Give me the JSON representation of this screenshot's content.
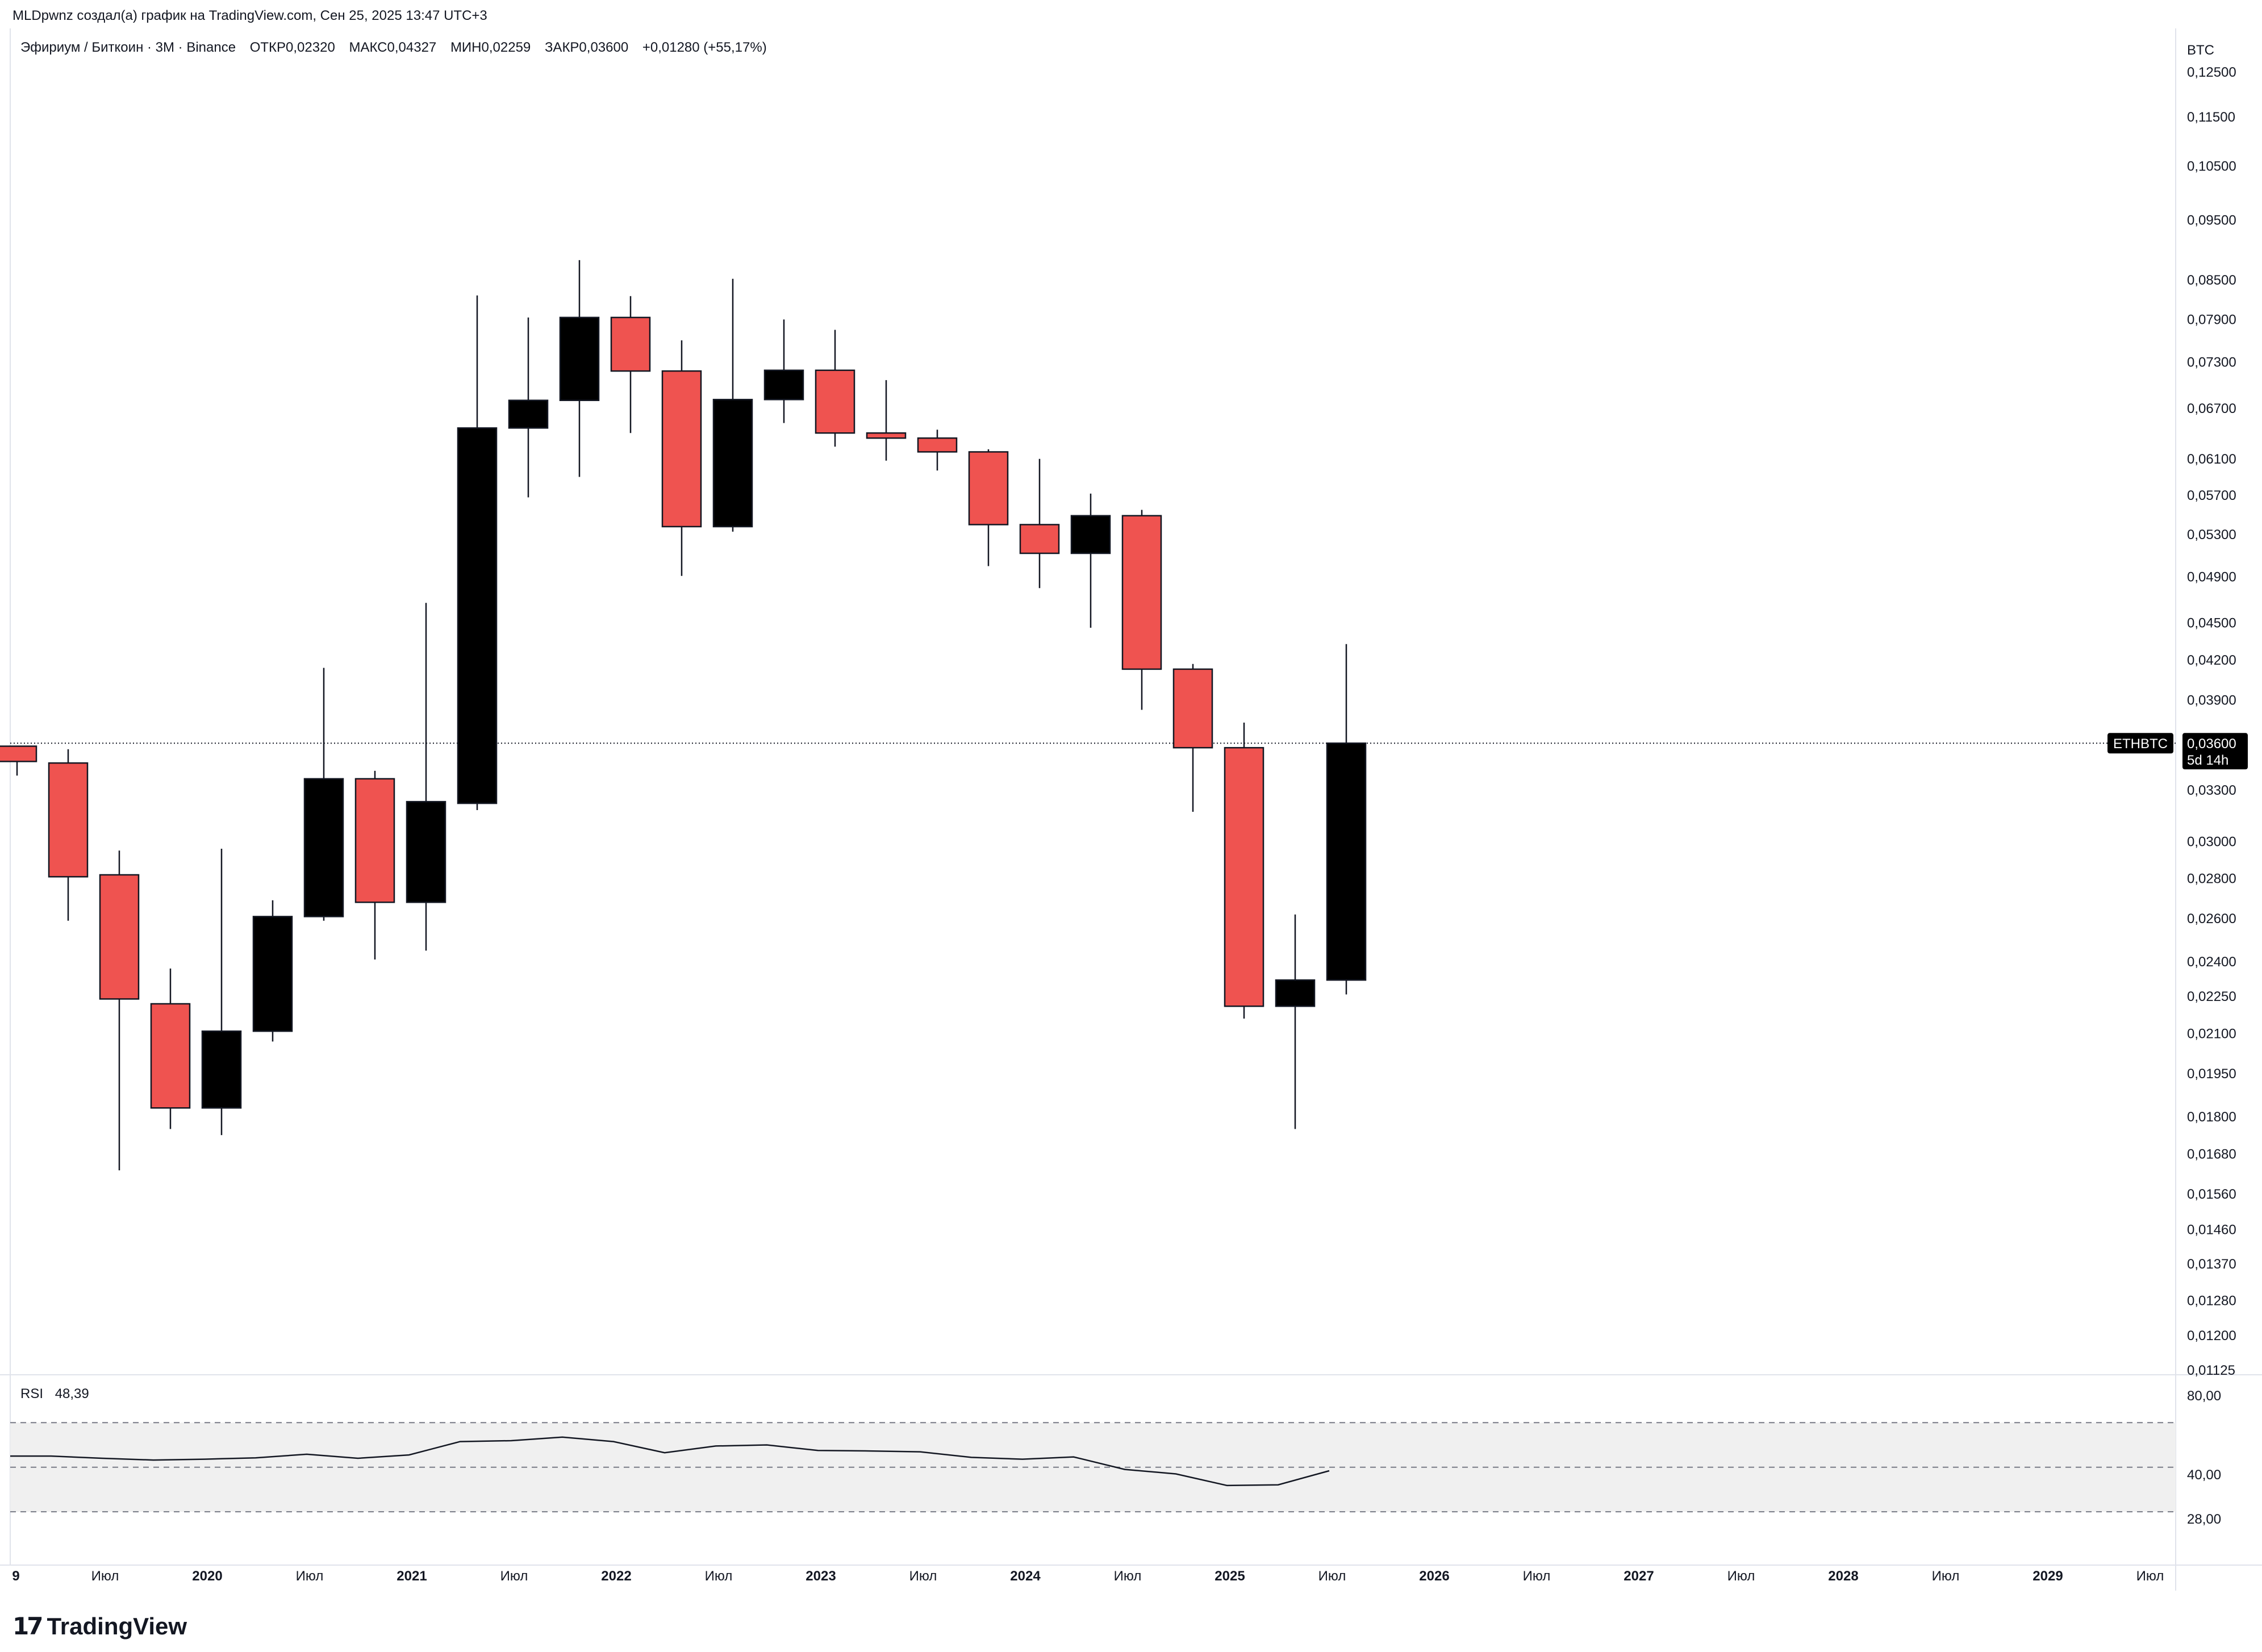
{
  "header": {
    "credit": "MLDpwnz создал(а) график на TradingView.com, Сен 25, 2025 13:47 UTC+3"
  },
  "legend": {
    "symbol": "Эфириум / Биткоин · 3М · Binance",
    "open": "ОТКР0,02320",
    "high": "МАКС0,04327",
    "low": "МИН0,02259",
    "close": "ЗАКР0,03600",
    "change": "+0,01280 (+55,17%)"
  },
  "price_axis": {
    "currency": "BTC",
    "last_label": "0,03600",
    "symbol_badge": "ETHBTC",
    "countdown": "5d 14h"
  },
  "rsi": {
    "name": "RSI",
    "value": "48,39",
    "labels": [
      "80,00",
      "40,00",
      "28,00"
    ]
  },
  "branding": {
    "logo_mark": "17",
    "logo_text": "TradingView"
  },
  "colors": {
    "up": "#000000",
    "down": "#ef5350",
    "rsi_band": "#f0f0f0",
    "badge_bg": "#000000"
  },
  "chart_data": {
    "type": "candlestick",
    "scale": "log",
    "y_ticks": [
      0.125,
      0.115,
      0.105,
      0.095,
      0.085,
      0.079,
      0.073,
      0.067,
      0.061,
      0.057,
      0.053,
      0.049,
      0.045,
      0.042,
      0.039,
      0.036,
      0.033,
      0.03,
      0.028,
      0.026,
      0.024,
      0.0225,
      0.021,
      0.0195,
      0.018,
      0.0168,
      0.0156,
      0.0146,
      0.0137,
      0.0128,
      0.012,
      0.01125
    ],
    "y_tick_labels": [
      "0,12500",
      "0,11500",
      "0,10500",
      "0,09500",
      "0,08500",
      "0,07900",
      "0,07300",
      "0,06700",
      "0,06100",
      "0,05700",
      "0,05300",
      "0,04900",
      "0,04500",
      "0,04200",
      "0,03900",
      "0,03600",
      "0,03300",
      "0,03000",
      "0,02800",
      "0,02600",
      "0,02400",
      "0,02250",
      "0,02100",
      "0,01950",
      "0,01800",
      "0,01680",
      "0,01560",
      "0,01460",
      "0,01370",
      "0,01280",
      "0,01200",
      "0,01125"
    ],
    "y_range": [
      0.01125,
      0.128
    ],
    "last_price": 0.036,
    "x_labels": [
      {
        "text": "9",
        "bold": true
      },
      {
        "text": "Июл",
        "bold": false
      },
      {
        "text": "2020",
        "bold": true
      },
      {
        "text": "Июл",
        "bold": false
      },
      {
        "text": "2021",
        "bold": true
      },
      {
        "text": "Июл",
        "bold": false
      },
      {
        "text": "2022",
        "bold": true
      },
      {
        "text": "Июл",
        "bold": false
      },
      {
        "text": "2023",
        "bold": true
      },
      {
        "text": "Июл",
        "bold": false
      },
      {
        "text": "2024",
        "bold": true
      },
      {
        "text": "Июл",
        "bold": false
      },
      {
        "text": "2025",
        "bold": true
      },
      {
        "text": "Июл",
        "bold": false
      },
      {
        "text": "2026",
        "bold": true
      },
      {
        "text": "Июл",
        "bold": false
      },
      {
        "text": "2027",
        "bold": true
      },
      {
        "text": "Июл",
        "bold": false
      },
      {
        "text": "2028",
        "bold": true
      },
      {
        "text": "Июл",
        "bold": false
      },
      {
        "text": "2029",
        "bold": true
      },
      {
        "text": "Июл",
        "bold": false
      }
    ],
    "candles": [
      {
        "period": "2018-Q4",
        "o": 0.0358,
        "h": 0.0358,
        "l": 0.0339,
        "c": 0.0348
      },
      {
        "period": "2019-Q1",
        "o": 0.0347,
        "h": 0.0356,
        "l": 0.0259,
        "c": 0.0281
      },
      {
        "period": "2019-Q2",
        "o": 0.0282,
        "h": 0.0295,
        "l": 0.0163,
        "c": 0.0224
      },
      {
        "period": "2019-Q3",
        "o": 0.0222,
        "h": 0.0237,
        "l": 0.0176,
        "c": 0.0183
      },
      {
        "period": "2019-Q4",
        "o": 0.0183,
        "h": 0.0296,
        "l": 0.0174,
        "c": 0.0211
      },
      {
        "period": "2020-Q1",
        "o": 0.0211,
        "h": 0.0269,
        "l": 0.0207,
        "c": 0.0261
      },
      {
        "period": "2020-Q2",
        "o": 0.0261,
        "h": 0.0414,
        "l": 0.0259,
        "c": 0.0337
      },
      {
        "period": "2020-Q3",
        "o": 0.0337,
        "h": 0.0342,
        "l": 0.0241,
        "c": 0.0268
      },
      {
        "period": "2020-Q4",
        "o": 0.0268,
        "h": 0.0467,
        "l": 0.0245,
        "c": 0.0323
      },
      {
        "period": "2021-Q1",
        "o": 0.0322,
        "h": 0.0826,
        "l": 0.0318,
        "c": 0.0646
      },
      {
        "period": "2021-Q2",
        "o": 0.0646,
        "h": 0.0793,
        "l": 0.0568,
        "c": 0.068
      },
      {
        "period": "2021-Q3",
        "o": 0.068,
        "h": 0.0882,
        "l": 0.059,
        "c": 0.0793
      },
      {
        "period": "2021-Q4",
        "o": 0.0793,
        "h": 0.0825,
        "l": 0.064,
        "c": 0.0718
      },
      {
        "period": "2022-Q1",
        "o": 0.0718,
        "h": 0.076,
        "l": 0.0491,
        "c": 0.0538
      },
      {
        "period": "2022-Q2",
        "o": 0.0538,
        "h": 0.0852,
        "l": 0.0533,
        "c": 0.0681
      },
      {
        "period": "2022-Q3",
        "o": 0.0681,
        "h": 0.079,
        "l": 0.0652,
        "c": 0.0719
      },
      {
        "period": "2022-Q4",
        "o": 0.0719,
        "h": 0.0775,
        "l": 0.0624,
        "c": 0.064
      },
      {
        "period": "2023-Q1",
        "o": 0.064,
        "h": 0.0706,
        "l": 0.0608,
        "c": 0.0634
      },
      {
        "period": "2023-Q2",
        "o": 0.0634,
        "h": 0.0644,
        "l": 0.0597,
        "c": 0.0618
      },
      {
        "period": "2023-Q3",
        "o": 0.0618,
        "h": 0.0621,
        "l": 0.05,
        "c": 0.054
      },
      {
        "period": "2023-Q4",
        "o": 0.054,
        "h": 0.061,
        "l": 0.048,
        "c": 0.0512
      },
      {
        "period": "2024-Q1",
        "o": 0.0512,
        "h": 0.0572,
        "l": 0.0446,
        "c": 0.0549
      },
      {
        "period": "2024-Q2",
        "o": 0.0549,
        "h": 0.0555,
        "l": 0.0383,
        "c": 0.0413
      },
      {
        "period": "2024-Q3",
        "o": 0.0413,
        "h": 0.0417,
        "l": 0.0317,
        "c": 0.0357
      },
      {
        "period": "2024-Q4",
        "o": 0.0357,
        "h": 0.0374,
        "l": 0.0216,
        "c": 0.0221
      },
      {
        "period": "2025-Q1",
        "o": 0.0221,
        "h": 0.0262,
        "l": 0.0176,
        "c": 0.0232
      },
      {
        "period": "2025-Q2",
        "o": 0.0232,
        "h": 0.04327,
        "l": 0.02259,
        "c": 0.036
      }
    ],
    "rsi_series": [
      55.0,
      54.0,
      53.2,
      53.6,
      54.2,
      55.8,
      54.0,
      55.5,
      61.5,
      61.9,
      63.5,
      61.5,
      56.5,
      59.5,
      60.0,
      57.5,
      57.3,
      56.9,
      54.4,
      53.6,
      54.6,
      49.0,
      47.0,
      41.8,
      42.1,
      48.39
    ],
    "rsi_range": [
      20,
      80
    ],
    "rsi_levels": [
      70,
      50,
      30
    ]
  }
}
